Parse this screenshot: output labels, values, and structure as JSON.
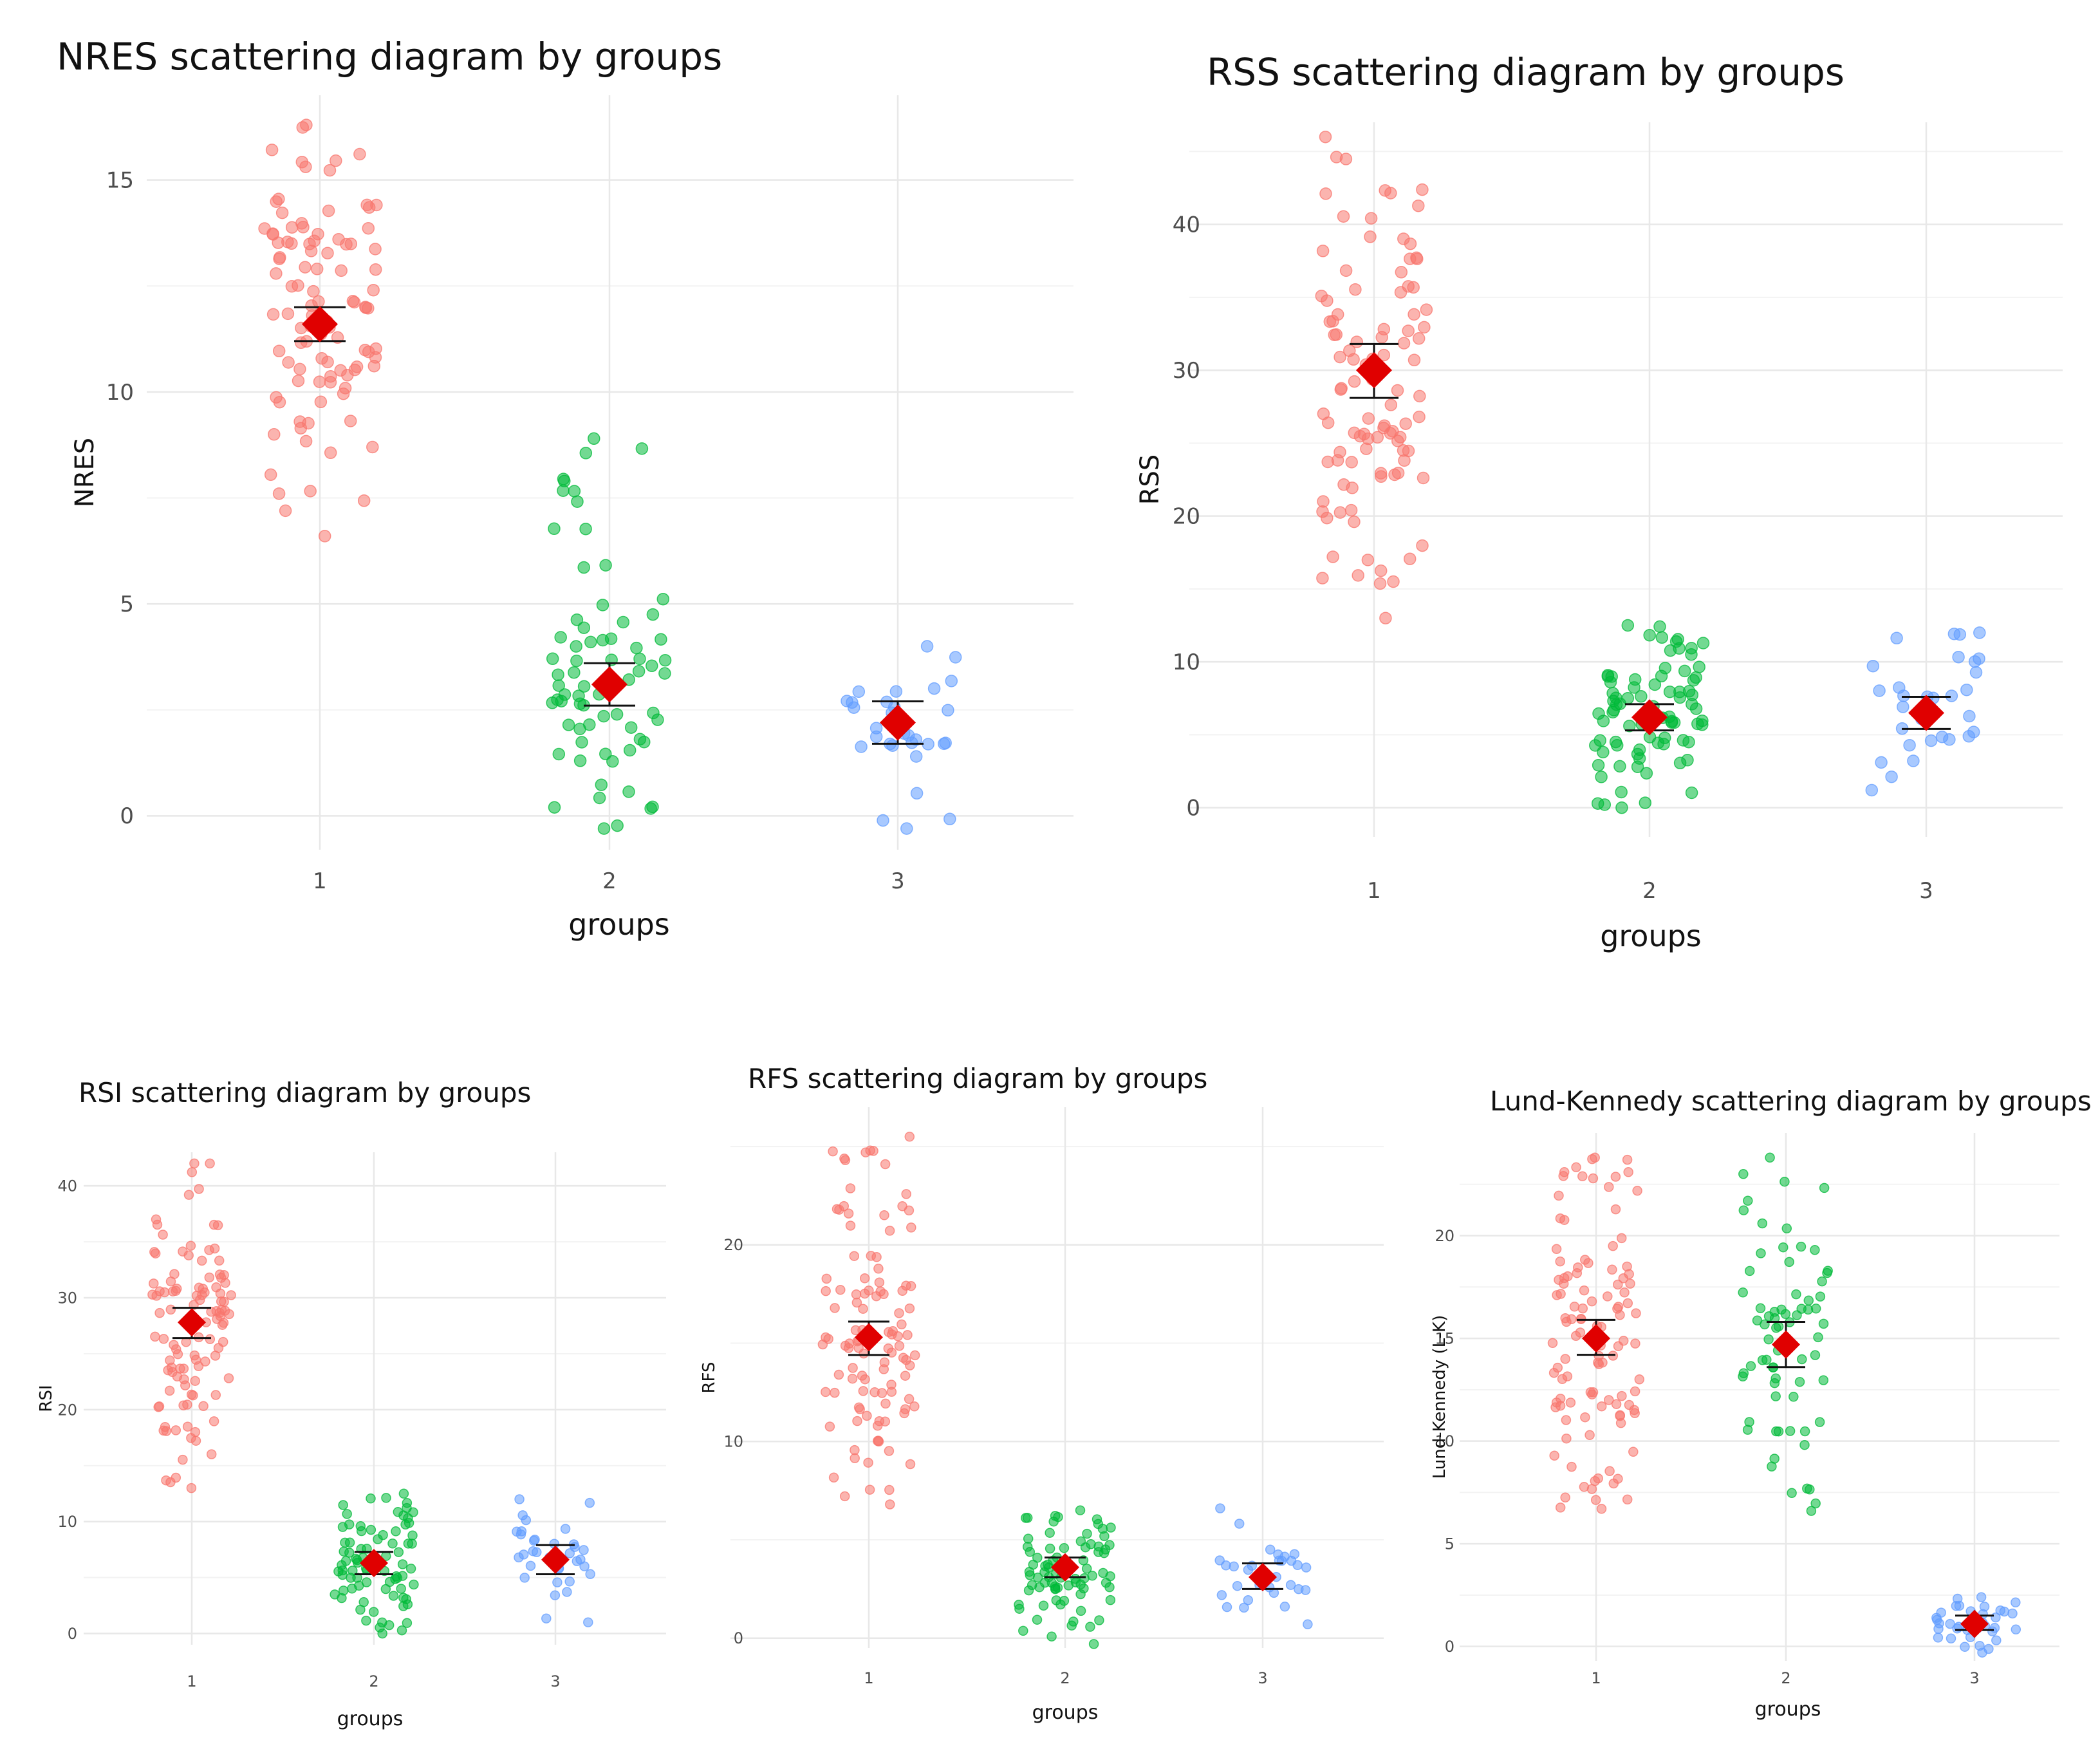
{
  "chart_data": [
    {
      "type": "scatter",
      "title": "NRES    scattering diagram by groups",
      "xlabel": "groups",
      "ylabel": "NRES",
      "categories": [
        "1",
        "2",
        "3"
      ],
      "yticks": [
        0,
        5,
        10,
        15
      ],
      "ylim": [
        -0.8,
        17
      ],
      "colors": [
        "#f8766d",
        "#00ba38",
        "#619cff"
      ],
      "mean_color": "#e00000",
      "groups": [
        {
          "name": "1",
          "n": 100,
          "min": 6.6,
          "max": 16.3,
          "mean": 11.6,
          "ci": [
            11.2,
            12.0
          ]
        },
        {
          "name": "2",
          "n": 70,
          "min": -0.3,
          "max": 8.9,
          "mean": 3.1,
          "ci": [
            2.6,
            3.6
          ]
        },
        {
          "name": "3",
          "n": 30,
          "min": -0.3,
          "max": 4.0,
          "mean": 2.2,
          "ci": [
            1.7,
            2.7
          ]
        }
      ]
    },
    {
      "type": "scatter",
      "title": "RSS  scattering diagram by groups",
      "xlabel": "groups",
      "ylabel": "RSS",
      "categories": [
        "1",
        "2",
        "3"
      ],
      "yticks": [
        0,
        10,
        20,
        30,
        40
      ],
      "ylim": [
        -2,
        47
      ],
      "colors": [
        "#f8766d",
        "#00ba38",
        "#619cff"
      ],
      "mean_color": "#e00000",
      "groups": [
        {
          "name": "1",
          "n": 100,
          "min": 13,
          "max": 46,
          "mean": 30.0,
          "ci": [
            28.1,
            31.8
          ]
        },
        {
          "name": "2",
          "n": 80,
          "min": 0,
          "max": 12.5,
          "mean": 6.2,
          "ci": [
            5.3,
            7.1
          ]
        },
        {
          "name": "3",
          "n": 30,
          "min": 1.2,
          "max": 12,
          "mean": 6.5,
          "ci": [
            5.4,
            7.6
          ]
        }
      ]
    },
    {
      "type": "scatter",
      "title": "RSI scattering diagram by groups",
      "xlabel": "groups",
      "ylabel": "RSI",
      "categories": [
        "1",
        "2",
        "3"
      ],
      "yticks": [
        0,
        10,
        20,
        30,
        40
      ],
      "ylim": [
        -1,
        43
      ],
      "colors": [
        "#f8766d",
        "#00ba38",
        "#619cff"
      ],
      "mean_color": "#e00000",
      "groups": [
        {
          "name": "1",
          "n": 110,
          "min": 13,
          "max": 42,
          "mean": 27.8,
          "ci": [
            26.4,
            29.1
          ]
        },
        {
          "name": "2",
          "n": 80,
          "min": 0,
          "max": 12.5,
          "mean": 6.3,
          "ci": [
            5.3,
            7.3
          ]
        },
        {
          "name": "3",
          "n": 35,
          "min": 1,
          "max": 12,
          "mean": 6.6,
          "ci": [
            5.3,
            7.9
          ]
        }
      ]
    },
    {
      "type": "scatter",
      "title": "RFS scattering diagram by groups",
      "xlabel": "groups",
      "ylabel": "RFS",
      "categories": [
        "1",
        "2",
        "3"
      ],
      "yticks": [
        0,
        10,
        20
      ],
      "ylim": [
        -0.5,
        27
      ],
      "colors": [
        "#f8766d",
        "#00ba38",
        "#619cff"
      ],
      "mean_color": "#e00000",
      "groups": [
        {
          "name": "1",
          "n": 110,
          "min": 6.8,
          "max": 25.5,
          "mean": 15.3,
          "ci": [
            14.4,
            16.1
          ]
        },
        {
          "name": "2",
          "n": 80,
          "min": -0.3,
          "max": 6.5,
          "mean": 3.6,
          "ci": [
            3.1,
            4.1
          ]
        },
        {
          "name": "3",
          "n": 30,
          "min": 0.7,
          "max": 6.6,
          "mean": 3.1,
          "ci": [
            2.5,
            3.8
          ]
        }
      ]
    },
    {
      "type": "scatter",
      "title": "Lund-Kennedy scattering diagram by groups",
      "xlabel": "groups",
      "ylabel": "Lund-Kennedy (L-K)",
      "categories": [
        "1",
        "2",
        "3"
      ],
      "yticks": [
        0,
        5,
        10,
        15,
        20
      ],
      "ylim": [
        -0.7,
        25
      ],
      "colors": [
        "#f8766d",
        "#00ba38",
        "#619cff"
      ],
      "mean_color": "#e00000",
      "groups": [
        {
          "name": "1",
          "n": 110,
          "min": 6.7,
          "max": 23.8,
          "mean": 15.0,
          "ci": [
            14.2,
            15.9
          ]
        },
        {
          "name": "2",
          "n": 70,
          "min": 6.6,
          "max": 23.8,
          "mean": 14.7,
          "ci": [
            13.6,
            15.8
          ]
        },
        {
          "name": "3",
          "n": 40,
          "min": -0.3,
          "max": 2.4,
          "mean": 1.1,
          "ci": [
            0.8,
            1.5
          ]
        }
      ]
    }
  ]
}
